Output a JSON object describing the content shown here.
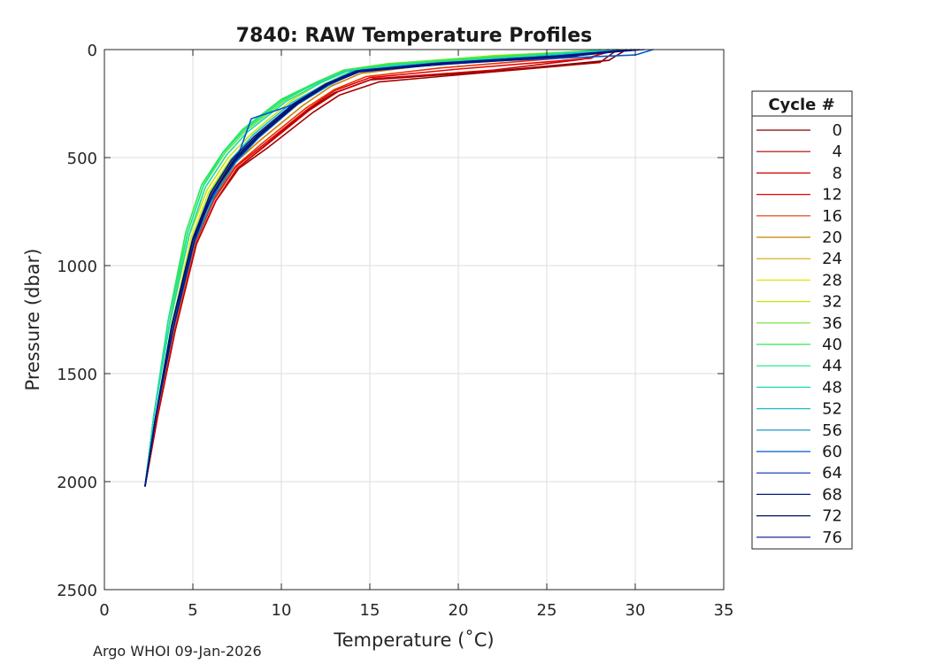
{
  "chart_data": {
    "type": "line",
    "title": "7840: RAW Temperature Profiles",
    "xlabel": "Temperature (˚C)",
    "ylabel": "Pressure (dbar)",
    "xlim": [
      0,
      35
    ],
    "ylim": [
      0,
      2500
    ],
    "y_reversed": true,
    "x_ticks": [
      0,
      5,
      10,
      15,
      20,
      25,
      30,
      35
    ],
    "y_ticks": [
      0,
      500,
      1000,
      1500,
      2000,
      2500
    ],
    "grid": true,
    "legend": {
      "title": "Cycle #",
      "placement": "right-outside",
      "entries": [
        {
          "label": "0",
          "color": "#800000"
        },
        {
          "label": "4",
          "color": "#a60000"
        },
        {
          "label": "8",
          "color": "#cc0000"
        },
        {
          "label": "12",
          "color": "#e60000"
        },
        {
          "label": "16",
          "color": "#e63300"
        },
        {
          "label": "20",
          "color": "#cc8000"
        },
        {
          "label": "24",
          "color": "#d4a600"
        },
        {
          "label": "28",
          "color": "#e6e600"
        },
        {
          "label": "32",
          "color": "#c8e600"
        },
        {
          "label": "36",
          "color": "#66e633"
        },
        {
          "label": "40",
          "color": "#33e64d"
        },
        {
          "label": "44",
          "color": "#1ae68c"
        },
        {
          "label": "48",
          "color": "#1ad9b3"
        },
        {
          "label": "52",
          "color": "#1abfcc"
        },
        {
          "label": "56",
          "color": "#0d8cc0"
        },
        {
          "label": "60",
          "color": "#0059cc"
        },
        {
          "label": "64",
          "color": "#0033b3"
        },
        {
          "label": "68",
          "color": "#001a80"
        },
        {
          "label": "72",
          "color": "#000f66"
        },
        {
          "label": "76",
          "color": "#00148c"
        }
      ]
    },
    "series": [
      {
        "name": "0",
        "color": "#800000",
        "temperature": [
          29.5,
          28.5,
          22.0,
          15.0,
          13.0,
          11.5,
          9.0,
          7.5,
          6.3,
          5.2,
          4.0,
          3.0,
          2.3
        ],
        "pressure": [
          0,
          50,
          100,
          140,
          200,
          280,
          450,
          550,
          700,
          900,
          1300,
          1700,
          2020
        ]
      },
      {
        "name": "4",
        "color": "#a60000",
        "temperature": [
          29.0,
          28.0,
          21.0,
          15.5,
          13.3,
          11.8,
          9.3,
          7.6,
          6.3,
          5.2,
          4.0,
          3.0,
          2.3
        ],
        "pressure": [
          0,
          60,
          110,
          150,
          210,
          290,
          450,
          550,
          700,
          900,
          1300,
          1700,
          2020
        ]
      },
      {
        "name": "8",
        "color": "#cc0000",
        "temperature": [
          29.0,
          27.0,
          22.0,
          15.2,
          13.2,
          11.6,
          9.1,
          7.5,
          6.3,
          5.2,
          4.0,
          3.0,
          2.3
        ],
        "pressure": [
          0,
          45,
          95,
          135,
          195,
          280,
          445,
          550,
          700,
          900,
          1300,
          1700,
          2020
        ]
      },
      {
        "name": "12",
        "color": "#e60000",
        "temperature": [
          28.5,
          27.5,
          20.0,
          15.0,
          13.0,
          11.5,
          9.0,
          7.4,
          6.2,
          5.1,
          3.9,
          2.9,
          2.3
        ],
        "pressure": [
          0,
          40,
          90,
          130,
          190,
          275,
          440,
          545,
          695,
          900,
          1300,
          1700,
          2020
        ]
      },
      {
        "name": "16",
        "color": "#e63300",
        "temperature": [
          28.0,
          26.5,
          19.0,
          14.8,
          13.0,
          11.4,
          8.9,
          7.4,
          6.2,
          5.1,
          3.9,
          2.9,
          2.3
        ],
        "pressure": [
          0,
          35,
          85,
          125,
          185,
          270,
          435,
          540,
          690,
          900,
          1300,
          1700,
          2020
        ]
      },
      {
        "name": "20",
        "color": "#cc8000",
        "temperature": [
          28.5,
          25.0,
          18.0,
          14.5,
          12.8,
          11.2,
          8.8,
          7.3,
          6.1,
          5.0,
          3.9,
          2.9,
          2.3
        ],
        "pressure": [
          0,
          30,
          75,
          110,
          170,
          260,
          420,
          530,
          680,
          890,
          1300,
          1700,
          2020
        ]
      },
      {
        "name": "24",
        "color": "#d4a600",
        "temperature": [
          28.8,
          24.0,
          17.5,
          14.2,
          12.6,
          11.0,
          8.6,
          7.2,
          6.0,
          5.0,
          3.8,
          2.9,
          2.3
        ],
        "pressure": [
          0,
          30,
          70,
          105,
          165,
          250,
          410,
          520,
          670,
          880,
          1290,
          1700,
          2020
        ]
      },
      {
        "name": "28",
        "color": "#e6e600",
        "temperature": [
          29.0,
          23.0,
          17.0,
          14.0,
          12.4,
          10.8,
          8.5,
          7.1,
          5.9,
          4.9,
          3.8,
          2.9,
          2.3
        ],
        "pressure": [
          0,
          28,
          68,
          100,
          160,
          245,
          400,
          510,
          660,
          870,
          1280,
          1700,
          2020
        ]
      },
      {
        "name": "32",
        "color": "#c8e600",
        "temperature": [
          29.2,
          22.0,
          16.5,
          13.8,
          12.2,
          10.5,
          8.3,
          7.0,
          5.8,
          4.8,
          3.7,
          2.8,
          2.3
        ],
        "pressure": [
          0,
          28,
          66,
          98,
          155,
          240,
          390,
          500,
          650,
          860,
          1270,
          1690,
          2020
        ]
      },
      {
        "name": "36",
        "color": "#66e633",
        "temperature": [
          29.0,
          22.0,
          16.0,
          13.5,
          12.0,
          10.2,
          8.0,
          6.8,
          5.6,
          4.7,
          3.7,
          2.8,
          2.3
        ],
        "pressure": [
          0,
          30,
          65,
          95,
          150,
          235,
          375,
          480,
          630,
          850,
          1260,
          1690,
          2020
        ]
      },
      {
        "name": "40",
        "color": "#33e64d",
        "temperature": [
          28.5,
          22.5,
          16.2,
          13.6,
          12.0,
          10.0,
          7.8,
          6.7,
          5.5,
          4.6,
          3.6,
          2.8,
          2.3
        ],
        "pressure": [
          0,
          32,
          68,
          97,
          150,
          230,
          370,
          475,
          625,
          845,
          1255,
          1690,
          2020
        ]
      },
      {
        "name": "44",
        "color": "#1ae68c",
        "temperature": [
          28.8,
          23.0,
          16.5,
          13.6,
          12.1,
          10.1,
          7.9,
          6.7,
          5.6,
          4.7,
          3.6,
          2.8,
          2.3
        ],
        "pressure": [
          0,
          34,
          70,
          98,
          152,
          232,
          372,
          478,
          628,
          848,
          1258,
          1690,
          2020
        ]
      },
      {
        "name": "48",
        "color": "#1ad9b3",
        "temperature": [
          29.0,
          23.5,
          16.8,
          13.7,
          12.2,
          10.3,
          8.1,
          6.9,
          5.7,
          4.8,
          3.7,
          2.8,
          2.3
        ],
        "pressure": [
          0,
          35,
          72,
          100,
          155,
          238,
          380,
          488,
          638,
          855,
          1262,
          1690,
          2020
        ]
      },
      {
        "name": "52",
        "color": "#1abfcc",
        "temperature": [
          29.5,
          24.0,
          17.0,
          14.0,
          12.5,
          10.6,
          8.4,
          7.2,
          6.0,
          5.0,
          3.8,
          2.9,
          2.3
        ],
        "pressure": [
          0,
          35,
          72,
          100,
          158,
          245,
          395,
          505,
          660,
          870,
          1275,
          1695,
          2020
        ]
      },
      {
        "name": "56",
        "color": "#0d8cc0",
        "temperature": [
          30.0,
          25.0,
          18.0,
          14.2,
          12.7,
          10.9,
          8.7,
          7.4,
          6.2,
          5.1,
          3.9,
          2.9,
          2.3
        ],
        "pressure": [
          0,
          38,
          75,
          105,
          165,
          255,
          410,
          525,
          680,
          890,
          1290,
          1700,
          2020
        ]
      },
      {
        "name": "60",
        "color": "#0059cc",
        "temperature": [
          31.0,
          30.0,
          20.0,
          14.5,
          12.8,
          10.5,
          8.3,
          7.6,
          6.8,
          6.0,
          5.0,
          3.9,
          2.9,
          2.3
        ],
        "pressure": [
          0,
          25,
          60,
          95,
          150,
          260,
          320,
          480,
          580,
          700,
          880,
          1290,
          1700,
          2020
        ]
      },
      {
        "name": "64",
        "color": "#0033b3",
        "temperature": [
          30.5,
          26.0,
          19.0,
          14.3,
          12.6,
          10.8,
          8.6,
          7.3,
          6.1,
          5.0,
          3.8,
          2.9,
          2.3
        ],
        "pressure": [
          0,
          28,
          62,
          98,
          158,
          250,
          405,
          515,
          670,
          880,
          1285,
          1700,
          2020
        ]
      },
      {
        "name": "68",
        "color": "#001a80",
        "temperature": [
          29.8,
          25.5,
          18.5,
          14.2,
          12.5,
          10.7,
          8.5,
          7.2,
          6.0,
          5.0,
          3.8,
          2.9,
          2.3
        ],
        "pressure": [
          0,
          30,
          65,
          100,
          160,
          250,
          400,
          510,
          665,
          875,
          1280,
          1700,
          2020
        ]
      },
      {
        "name": "72",
        "color": "#000f66",
        "temperature": [
          30.2,
          26.0,
          19.0,
          14.4,
          12.6,
          10.8,
          8.6,
          7.3,
          6.1,
          5.0,
          3.8,
          2.9,
          2.3
        ],
        "pressure": [
          0,
          32,
          68,
          102,
          162,
          252,
          402,
          512,
          668,
          878,
          1282,
          1700,
          2020
        ]
      },
      {
        "name": "76",
        "color": "#00148c",
        "temperature": [
          30.0,
          26.5,
          19.5,
          14.5,
          12.7,
          10.9,
          8.7,
          7.4,
          6.1,
          5.1,
          3.9,
          2.9,
          2.3
        ],
        "pressure": [
          0,
          30,
          66,
          100,
          160,
          252,
          405,
          515,
          670,
          880,
          1285,
          1700,
          2020
        ]
      }
    ]
  },
  "footer": {
    "credit": "Argo WHOI 09-Jan-2026"
  }
}
